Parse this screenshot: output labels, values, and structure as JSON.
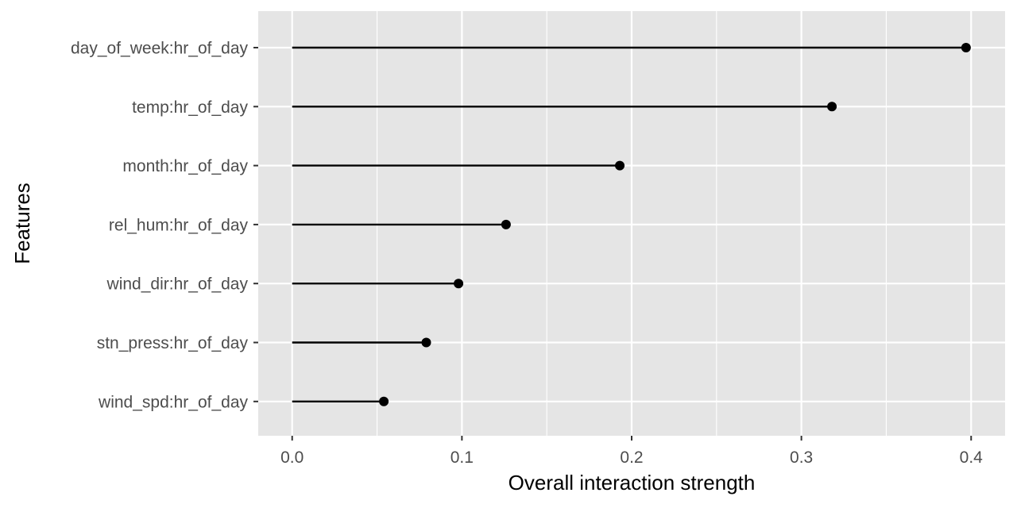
{
  "chart_data": {
    "type": "lollipop",
    "xlabel": "Overall interaction strength",
    "ylabel": "Features",
    "xlim": [
      -0.02,
      0.42
    ],
    "x_ticks": [
      0.0,
      0.1,
      0.2,
      0.3,
      0.4
    ],
    "x_tick_labels": [
      "0.0",
      "0.1",
      "0.2",
      "0.3",
      "0.4"
    ],
    "x_minor_ticks": [
      0.05,
      0.15,
      0.25,
      0.35
    ],
    "grid": true,
    "categories": [
      "day_of_week:hr_of_day",
      "temp:hr_of_day",
      "month:hr_of_day",
      "rel_hum:hr_of_day",
      "wind_dir:hr_of_day",
      "stn_press:hr_of_day",
      "wind_spd:hr_of_day"
    ],
    "values": [
      0.397,
      0.318,
      0.193,
      0.126,
      0.098,
      0.079,
      0.054
    ],
    "colors": {
      "panel": "#e5e5e5",
      "grid": "#ffffff",
      "mark": "#000000",
      "tick_text": "#4d4d4d"
    }
  }
}
